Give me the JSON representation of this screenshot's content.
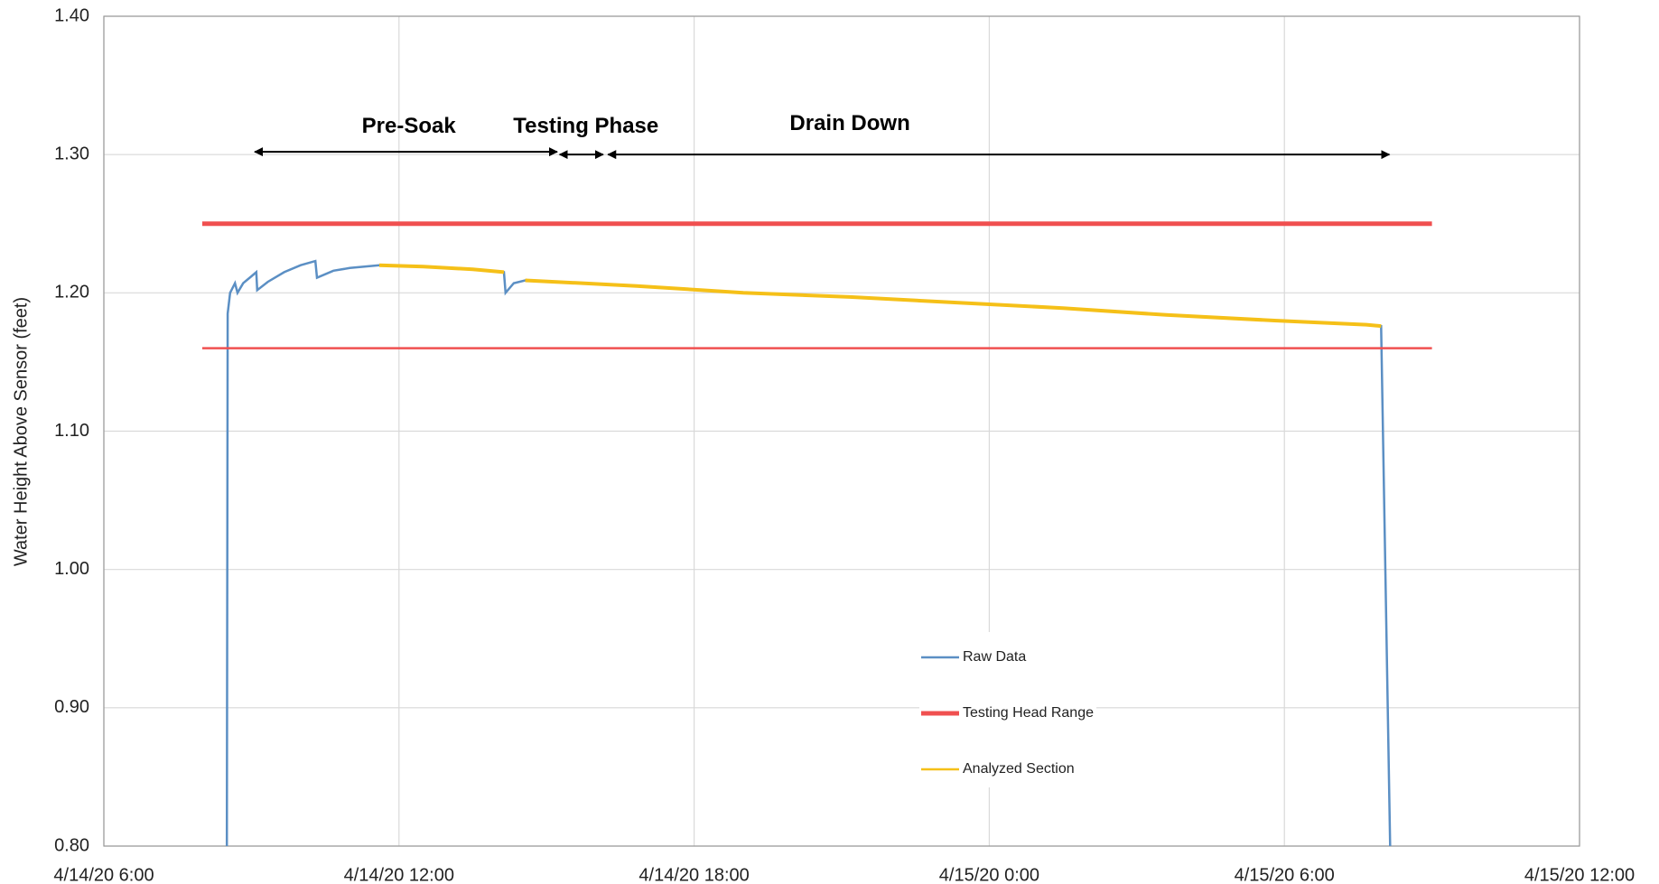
{
  "chart_data": {
    "type": "line",
    "ylabel": "Water Height Above Sensor (feet)",
    "xlim": [
      "4/14/20 6:00",
      "4/15/20 12:00"
    ],
    "xticks": [
      "4/14/20 6:00",
      "4/14/20 12:00",
      "4/14/20 18:00",
      "4/15/20 0:00",
      "4/15/20 6:00",
      "4/15/20 12:00"
    ],
    "ylim": [
      0.8,
      1.4
    ],
    "yticks": [
      {
        "value": 0.8,
        "label": "0.80"
      },
      {
        "value": 0.9,
        "label": "0.90"
      },
      {
        "value": 1.0,
        "label": "1.00"
      },
      {
        "value": 1.1,
        "label": "1.10"
      },
      {
        "value": 1.2,
        "label": "1.20"
      },
      {
        "value": 1.3,
        "label": "1.30"
      },
      {
        "value": 1.4,
        "label": "1.40"
      }
    ],
    "grid": true,
    "series": [
      {
        "name": "Raw Data",
        "color": "#5b8fc4",
        "x": [
          "4/14/20 8:30",
          "4/14/20 8:31",
          "4/14/20 8:34",
          "4/14/20 8:40",
          "4/14/20 8:43",
          "4/14/20 8:50",
          "4/14/20 9:00",
          "4/14/20 9:06",
          "4/14/20 9:07",
          "4/14/20 9:20",
          "4/14/20 9:40",
          "4/14/20 10:00",
          "4/14/20 10:18",
          "4/14/20 10:20",
          "4/14/20 10:40",
          "4/14/20 11:00",
          "4/14/20 11:36",
          "4/14/20 12:30",
          "4/14/20 13:30",
          "4/14/20 14:08",
          "4/14/20 14:10",
          "4/14/20 14:20",
          "4/14/20 14:34",
          "4/14/20 16:50",
          "4/14/20 19:00",
          "4/14/20 21:10",
          "4/14/20 23:20",
          "4/15/20 1:30",
          "4/15/20 3:36",
          "4/15/20 5:48",
          "4/15/20 7:40",
          "4/15/20 7:58",
          "4/15/20 8:09"
        ],
        "values": [
          0.8,
          1.185,
          1.2,
          1.207,
          1.2,
          1.207,
          1.212,
          1.215,
          1.202,
          1.208,
          1.215,
          1.22,
          1.223,
          1.211,
          1.216,
          1.218,
          1.22,
          1.219,
          1.217,
          1.215,
          1.2,
          1.207,
          1.209,
          1.205,
          1.2,
          1.197,
          1.193,
          1.189,
          1.184,
          1.18,
          1.177,
          1.176,
          0.8
        ]
      },
      {
        "name": "Testing Head Range",
        "color": "#f05050",
        "kind": "hline",
        "x": [
          "4/14/20 8:00",
          "4/15/20 9:00"
        ],
        "values": [
          1.25,
          1.16
        ]
      },
      {
        "name": "Analyzed Section",
        "color": "#f5c018",
        "x": [
          "4/14/20 11:36",
          "4/14/20 12:30",
          "4/14/20 13:30",
          "4/14/20 14:08",
          null,
          "4/14/20 14:34",
          "4/14/20 16:50",
          "4/14/20 19:00",
          "4/14/20 21:10",
          "4/14/20 23:20",
          "4/15/20 1:30",
          "4/15/20 3:36",
          "4/15/20 5:48",
          "4/15/20 7:40",
          "4/15/20 7:58"
        ],
        "values": [
          1.22,
          1.219,
          1.217,
          1.215,
          null,
          1.209,
          1.205,
          1.2,
          1.197,
          1.193,
          1.189,
          1.184,
          1.18,
          1.177,
          1.176
        ]
      }
    ],
    "annotations": [
      {
        "text": "Pre-Soak",
        "x": "4/14/20 12:12",
        "y": 1.32,
        "arrow_x": [
          "4/14/20 9:04",
          "4/14/20 15:13"
        ],
        "arrow_y": 1.302
      },
      {
        "text": "Testing Phase",
        "x": "4/14/20 15:48",
        "y": 1.32,
        "arrow_x": [
          "4/14/20 15:16",
          "4/14/20 16:09"
        ],
        "arrow_y": 1.3
      },
      {
        "text": "Drain Down",
        "x": "4/14/20 21:10",
        "y": 1.322,
        "arrow_x": [
          "4/14/20 16:15",
          "4/15/20 8:08"
        ],
        "arrow_y": 1.3
      }
    ]
  }
}
